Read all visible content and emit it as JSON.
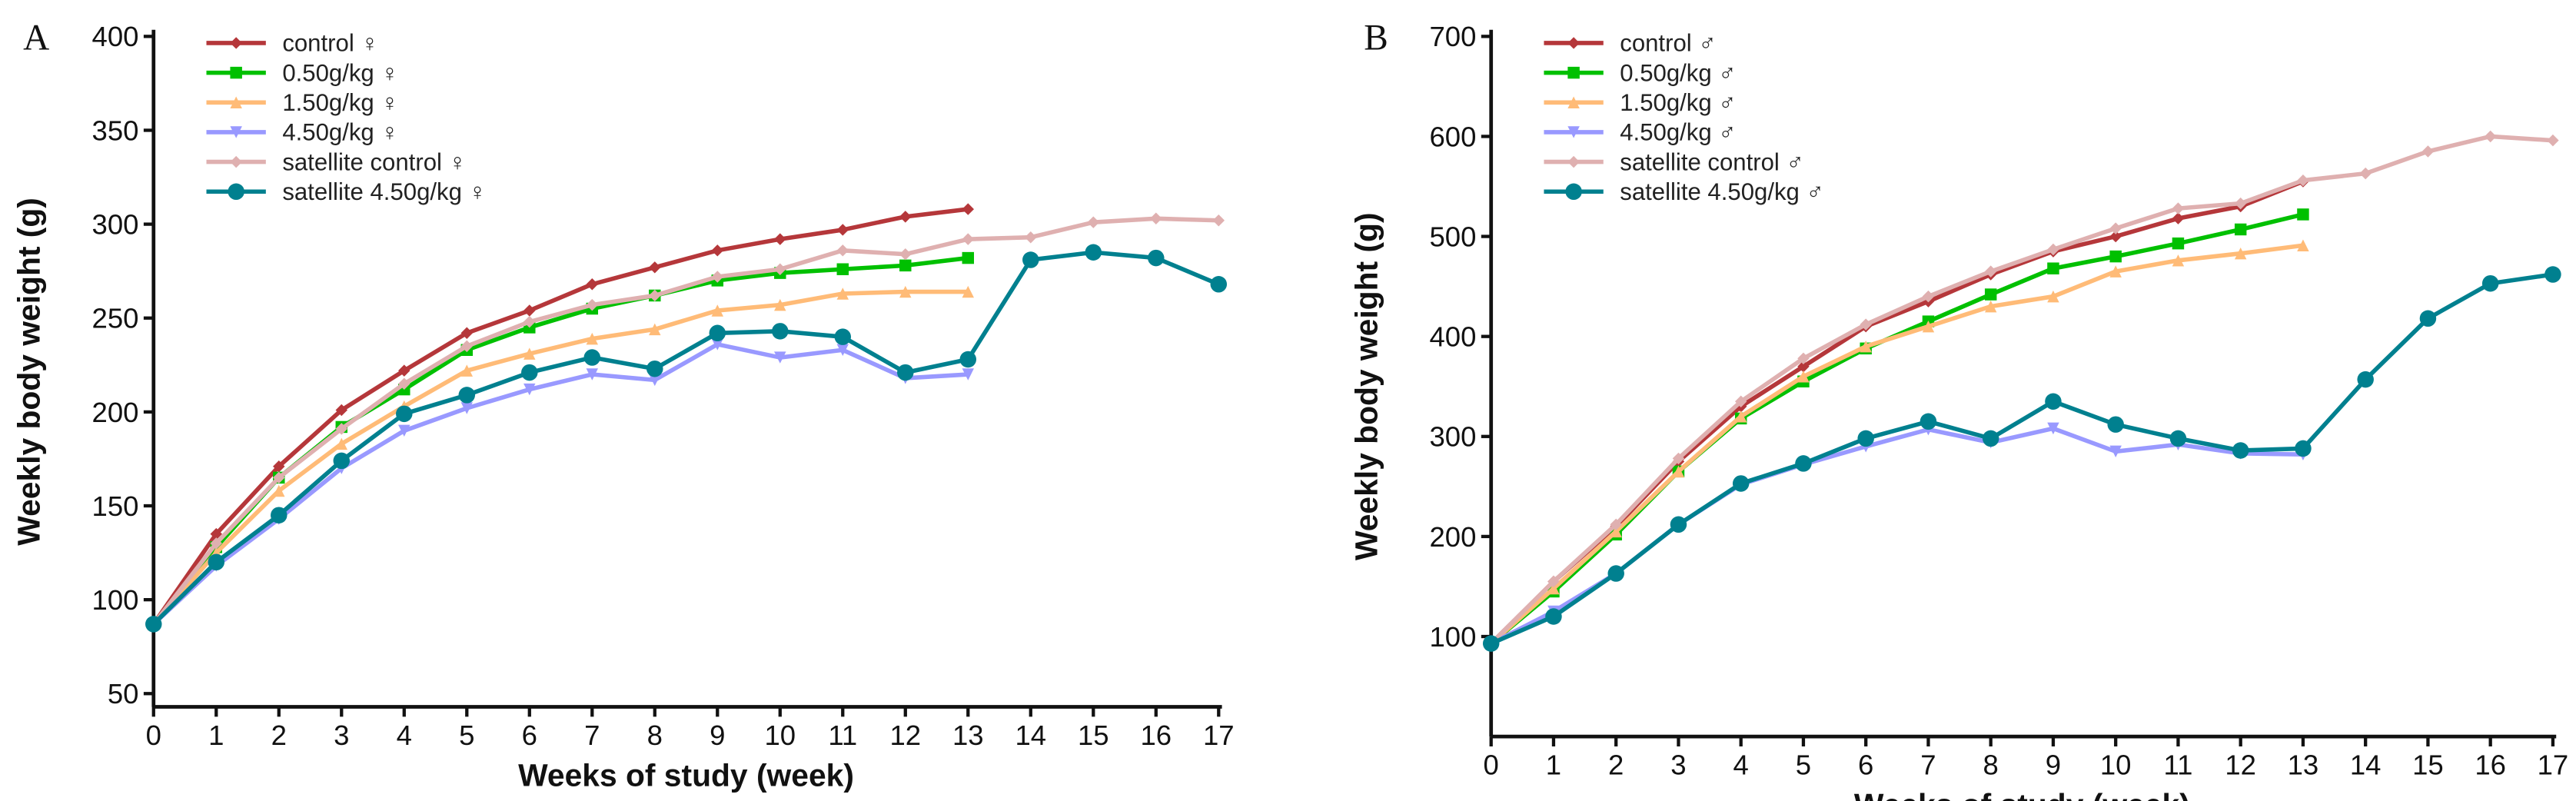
{
  "chart_data": [
    {
      "type": "line",
      "panel_label": "A",
      "xlabel": "Weeks of study (week)",
      "ylabel": "Weekly body weight (g)",
      "xlim": [
        0,
        17
      ],
      "ylim": [
        50,
        400
      ],
      "xticks": [
        "0",
        "1",
        "2",
        "3",
        "4",
        "5",
        "6",
        "7",
        "8",
        "9",
        "10",
        "11",
        "12",
        "13",
        "14",
        "15",
        "16",
        "17"
      ],
      "yticks": [
        "50",
        "100",
        "150",
        "200",
        "250",
        "300",
        "350",
        "400"
      ],
      "legend_position": "top-left",
      "series": [
        {
          "name": "control ♀",
          "color": "#b5373a",
          "marker": "diamond",
          "x": [
            0,
            1,
            2,
            3,
            4,
            5,
            6,
            7,
            8,
            9,
            10,
            11,
            12,
            13
          ],
          "values": [
            87,
            135,
            171,
            201,
            222,
            242,
            254,
            268,
            277,
            286,
            292,
            297,
            304,
            308
          ]
        },
        {
          "name": "0.50g/kg ♀",
          "color": "#00c000",
          "marker": "square",
          "x": [
            0,
            1,
            2,
            3,
            4,
            5,
            6,
            7,
            8,
            9,
            10,
            11,
            12,
            13
          ],
          "values": [
            87,
            128,
            165,
            192,
            212,
            233,
            245,
            255,
            262,
            270,
            274,
            276,
            278,
            282
          ]
        },
        {
          "name": "1.50g/kg ♀",
          "color": "#ffbb77",
          "marker": "triangle",
          "x": [
            0,
            1,
            2,
            3,
            4,
            5,
            6,
            7,
            8,
            9,
            10,
            11,
            12,
            13
          ],
          "values": [
            87,
            125,
            158,
            183,
            203,
            222,
            231,
            239,
            244,
            254,
            257,
            263,
            264,
            264
          ]
        },
        {
          "name": "4.50g/kg ♀",
          "color": "#9999ff",
          "marker": "triangle-down",
          "x": [
            0,
            1,
            2,
            3,
            4,
            5,
            6,
            7,
            8,
            9,
            10,
            11,
            12,
            13
          ],
          "values": [
            87,
            118,
            143,
            170,
            190,
            202,
            212,
            220,
            217,
            236,
            229,
            233,
            218,
            220
          ]
        },
        {
          "name": "satellite control ♀",
          "color": "#dfb0b0",
          "marker": "diamond",
          "x": [
            0,
            1,
            2,
            3,
            4,
            5,
            6,
            7,
            8,
            9,
            10,
            11,
            12,
            13,
            14,
            15,
            16,
            17
          ],
          "values": [
            87,
            130,
            165,
            191,
            215,
            235,
            248,
            257,
            262,
            272,
            276,
            286,
            284,
            292,
            293,
            301,
            303,
            302
          ]
        },
        {
          "name": "satellite 4.50g/kg ♀",
          "color": "#00808f",
          "marker": "circle",
          "x": [
            0,
            1,
            2,
            3,
            4,
            5,
            6,
            7,
            8,
            9,
            10,
            11,
            12,
            13,
            14,
            15,
            16,
            17
          ],
          "values": [
            87,
            120,
            145,
            174,
            199,
            209,
            221,
            229,
            223,
            242,
            243,
            240,
            221,
            228,
            281,
            285,
            282,
            268
          ]
        }
      ]
    },
    {
      "type": "line",
      "panel_label": "B",
      "xlabel": "Weeks of study (week)",
      "ylabel": "Weekly body weight (g)",
      "xlim": [
        0,
        17
      ],
      "ylim": [
        0,
        700
      ],
      "xticks": [
        "0",
        "1",
        "2",
        "3",
        "4",
        "5",
        "6",
        "7",
        "8",
        "9",
        "10",
        "11",
        "12",
        "13",
        "14",
        "15",
        "16",
        "17"
      ],
      "yticks": [
        "100",
        "200",
        "300",
        "400",
        "500",
        "600",
        "700"
      ],
      "legend_position": "top-left",
      "series": [
        {
          "name": "control ♂",
          "color": "#b5373a",
          "marker": "diamond",
          "x": [
            0,
            1,
            2,
            3,
            4,
            5,
            6,
            7,
            8,
            9,
            10,
            11,
            12,
            13
          ],
          "values": [
            93,
            155,
            210,
            275,
            330,
            370,
            410,
            435,
            462,
            485,
            500,
            518,
            530,
            555
          ]
        },
        {
          "name": "0.50g/kg ♂",
          "color": "#00c000",
          "marker": "square",
          "x": [
            0,
            1,
            2,
            3,
            4,
            5,
            6,
            7,
            8,
            9,
            10,
            11,
            12,
            13
          ],
          "values": [
            93,
            145,
            202,
            265,
            318,
            355,
            388,
            415,
            442,
            468,
            480,
            493,
            507,
            522
          ]
        },
        {
          "name": "1.50g/kg ♂",
          "color": "#ffbb77",
          "marker": "triangle",
          "x": [
            0,
            1,
            2,
            3,
            4,
            5,
            6,
            7,
            8,
            9,
            10,
            11,
            12,
            13
          ],
          "values": [
            93,
            148,
            205,
            265,
            320,
            360,
            390,
            410,
            430,
            440,
            465,
            476,
            483,
            491
          ]
        },
        {
          "name": "4.50g/kg ♂",
          "color": "#9999ff",
          "marker": "triangle-down",
          "x": [
            0,
            1,
            2,
            3,
            4,
            5,
            6,
            7,
            8,
            9,
            10,
            11,
            12,
            13
          ],
          "values": [
            93,
            125,
            163,
            212,
            252,
            272,
            290,
            307,
            294,
            308,
            285,
            292,
            283,
            282
          ]
        },
        {
          "name": "satellite control ♂",
          "color": "#dfb0b0",
          "marker": "diamond",
          "x": [
            0,
            1,
            2,
            3,
            4,
            5,
            6,
            7,
            8,
            9,
            10,
            11,
            12,
            13,
            14,
            15,
            16,
            17
          ],
          "values": [
            93,
            155,
            212,
            278,
            335,
            378,
            412,
            440,
            465,
            487,
            508,
            528,
            533,
            556,
            563,
            585,
            600,
            596
          ]
        },
        {
          "name": "satellite 4.50g/kg ♂",
          "color": "#00808f",
          "marker": "circle",
          "x": [
            0,
            1,
            2,
            3,
            4,
            5,
            6,
            7,
            8,
            9,
            10,
            11,
            12,
            13,
            14,
            15,
            16,
            17
          ],
          "values": [
            93,
            120,
            163,
            212,
            253,
            273,
            298,
            315,
            298,
            335,
            312,
            298,
            286,
            288,
            357,
            418,
            453,
            462
          ]
        }
      ]
    }
  ]
}
